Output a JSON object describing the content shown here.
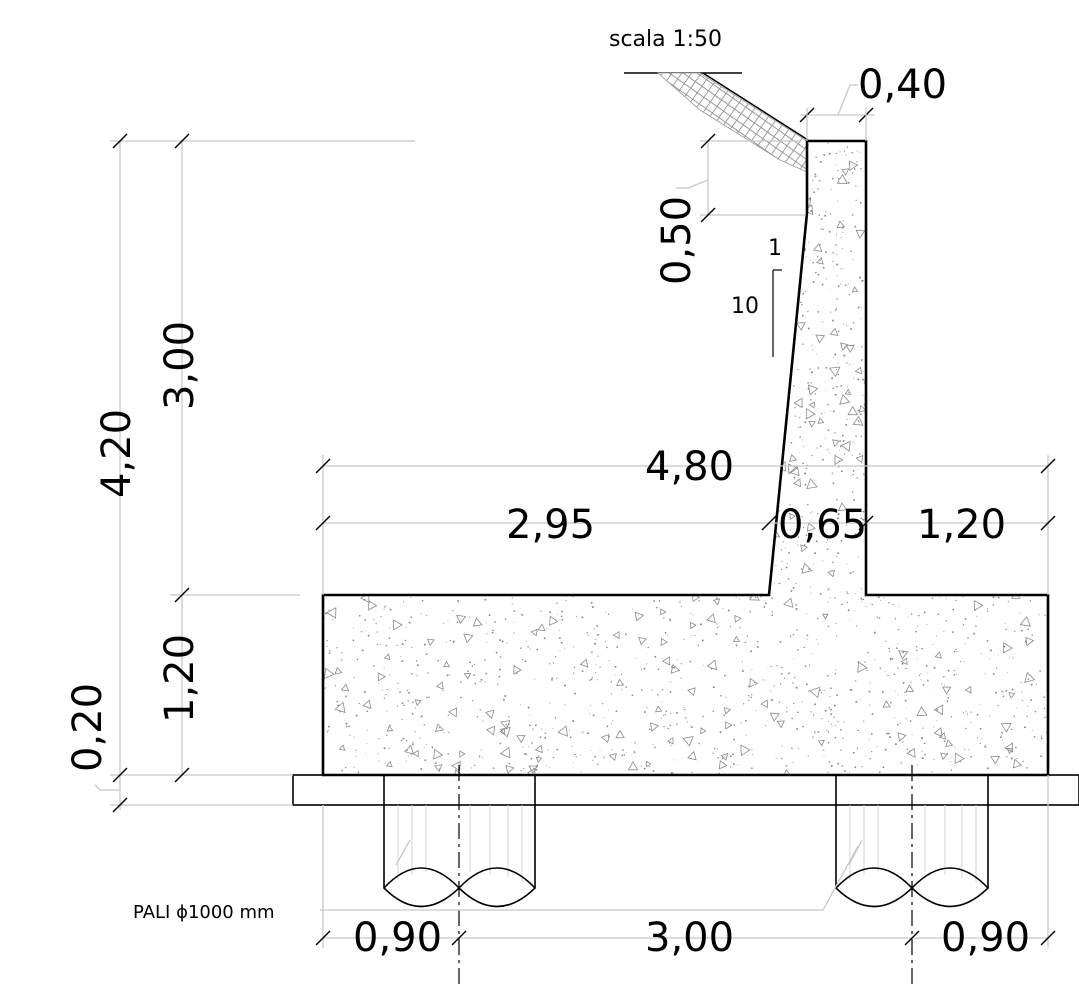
{
  "scale_label": "scala 1:50",
  "pile_label": "PALI ϕ1000 mm",
  "slope": {
    "rise": "1",
    "run": "10"
  },
  "dimensions": {
    "top_width": "0,40",
    "top_offset": "0,50",
    "total_height": "4,20",
    "stem_height": "3,00",
    "footing_height": "1,20",
    "blinding": "0,20",
    "base_width": "4,80",
    "heel": "2,95",
    "stem_base": "0,65",
    "toe": "1,20",
    "pile_left_edge": "0,90",
    "pile_spacing": "3,00",
    "pile_right_edge": "0,90"
  },
  "colors": {
    "outline": "#000000",
    "dimension_lines": "#c8c8c8",
    "concrete_dots": "#8a8a8a"
  }
}
